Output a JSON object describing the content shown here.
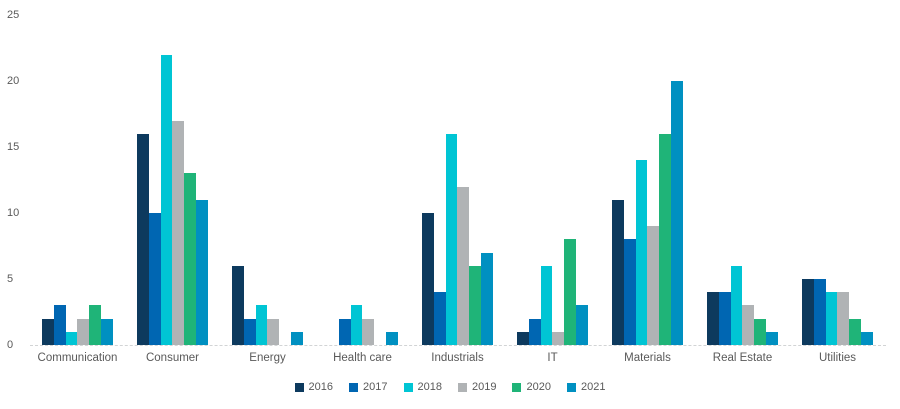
{
  "chart_data": {
    "type": "bar",
    "title": "",
    "xlabel": "",
    "ylabel": "",
    "categories": [
      "Communication",
      "Consumer",
      "Energy",
      "Health care",
      "Industrials",
      "IT",
      "Materials",
      "Real Estate",
      "Utilities"
    ],
    "series": [
      {
        "name": "2016",
        "color": "#0d3a5e",
        "values": [
          2,
          16,
          6,
          0,
          10,
          1,
          11,
          4,
          5
        ]
      },
      {
        "name": "2017",
        "color": "#0066b2",
        "values": [
          3,
          10,
          2,
          2,
          4,
          2,
          8,
          4,
          5
        ]
      },
      {
        "name": "2018",
        "color": "#00c5d4",
        "values": [
          1,
          22,
          3,
          3,
          16,
          6,
          14,
          6,
          4
        ]
      },
      {
        "name": "2019",
        "color": "#b0b3b5",
        "values": [
          2,
          17,
          2,
          2,
          12,
          1,
          9,
          3,
          4
        ]
      },
      {
        "name": "2020",
        "color": "#1fb478",
        "values": [
          3,
          13,
          0,
          0,
          6,
          8,
          16,
          2,
          2
        ]
      },
      {
        "name": "2021",
        "color": "#0090c1",
        "values": [
          2,
          11,
          1,
          1,
          7,
          3,
          20,
          1,
          1
        ]
      }
    ],
    "ylim": [
      0,
      25
    ],
    "yticks": [
      0,
      5,
      10,
      15,
      20,
      25
    ],
    "grid": false,
    "legend_position": "bottom",
    "axis_text_color": "#595959",
    "baseline_color": "#d2d4d5"
  }
}
